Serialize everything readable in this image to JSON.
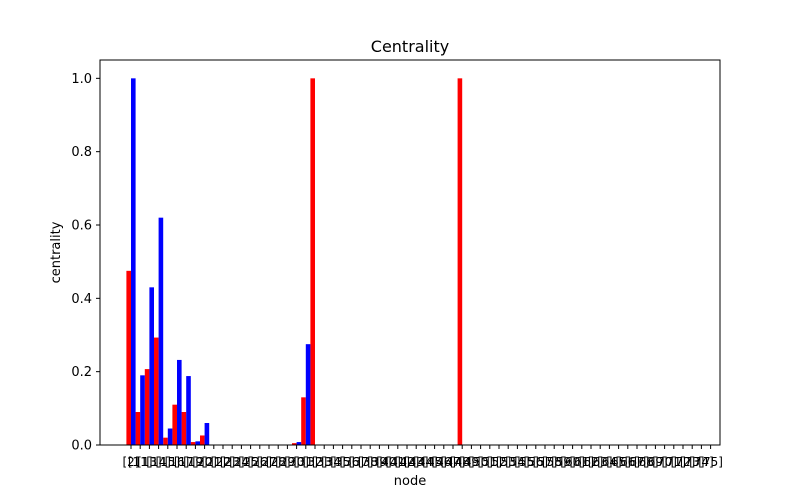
{
  "chart_data": {
    "type": "bar",
    "title": "Centrality",
    "xlabel": "node",
    "ylabel": "centrality",
    "ylim": [
      0,
      1.05
    ],
    "yticks": [
      0.0,
      0.2,
      0.4,
      0.6,
      0.8,
      1.0
    ],
    "ytick_labels": [
      "0.0",
      "0.2",
      "0.4",
      "0.6",
      "0.8",
      "1.0"
    ],
    "grid": false,
    "categories": [
      "[2]",
      "[11]",
      "[13]",
      "[14]",
      "[15]",
      "[16]",
      "[17]",
      "[19]",
      "[20]",
      "[21]",
      "[22]",
      "[23]",
      "[24]",
      "[25]",
      "[26]",
      "[27]",
      "[28]",
      "[29]",
      "[30]",
      "[31]",
      "[32]",
      "[33]",
      "[34]",
      "[35]",
      "[36]",
      "[37]",
      "[38]",
      "[39]",
      "[40]",
      "[41]",
      "[42]",
      "[43]",
      "[44]",
      "[45]",
      "[46]",
      "[47]",
      "[48]",
      "[49]",
      "[50]",
      "[51]",
      "[52]",
      "[53]",
      "[54]",
      "[55]",
      "[56]",
      "[57]",
      "[58]",
      "[59]",
      "[60]",
      "[61]",
      "[62]",
      "[63]",
      "[64]",
      "[65]",
      "[66]",
      "[67]",
      "[68]",
      "[69]",
      "[70]",
      "[71]",
      "[72]",
      "[73]",
      "[74]",
      "[75]"
    ],
    "series": [
      {
        "color": "#ff0000",
        "values": [
          0.475,
          0.09,
          0.207,
          0.293,
          0.02,
          0.11,
          0.09,
          0.008,
          0.026,
          0,
          0,
          0,
          0,
          0,
          0,
          0,
          0,
          0,
          0.005,
          0.13,
          1.0,
          0,
          0,
          0,
          0,
          0,
          0,
          0,
          0,
          0,
          0,
          0,
          0,
          0,
          0,
          0,
          1.0,
          0,
          0,
          0,
          0,
          0,
          0,
          0,
          0,
          0,
          0,
          0,
          0,
          0,
          0,
          0,
          0,
          0,
          0,
          0,
          0,
          0,
          0,
          0,
          0,
          0,
          0,
          0
        ]
      },
      {
        "color": "#0000ff",
        "values": [
          1.0,
          0.19,
          0.43,
          0.62,
          0.045,
          0.232,
          0.188,
          0.01,
          0.06,
          0,
          0,
          0,
          0,
          0,
          0,
          0,
          0,
          0,
          0.008,
          0.275,
          0,
          0,
          0,
          0,
          0,
          0,
          0,
          0,
          0,
          0,
          0,
          0,
          0,
          0,
          0,
          0,
          0,
          0,
          0,
          0,
          0,
          0,
          0,
          0,
          0,
          0,
          0,
          0,
          0,
          0,
          0,
          0,
          0,
          0,
          0,
          0,
          0,
          0,
          0,
          0,
          0,
          0,
          0,
          0
        ]
      }
    ]
  }
}
